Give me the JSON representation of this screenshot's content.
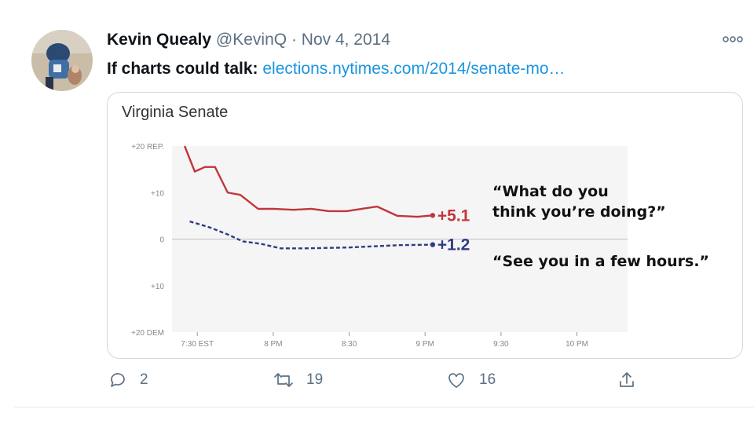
{
  "tweet": {
    "author_name": "Kevin Quealy",
    "handle": "@KevinQ",
    "separator": "·",
    "date": "Nov 4, 2014",
    "text_lead": "If charts could talk",
    "text_colon": ": ",
    "link": "elections.nytimes.com/2014/senate-mo…"
  },
  "card": {
    "quote_top": "“What do you\nthink you’re doing?”",
    "quote_bottom": "“See you in a few hours.”"
  },
  "actions": {
    "reply_count": "2",
    "retweet_count": "19",
    "like_count": "16"
  },
  "colors": {
    "rep": "#c0363c",
    "dem": "#2e3d84",
    "link": "#1b95e0",
    "muted": "#5b7083"
  },
  "chart_data": {
    "type": "line",
    "title": "Virginia Senate",
    "x_tick_labels": [
      "7:30 EST",
      "8 PM",
      "8:30",
      "9 PM",
      "9:30",
      "10 PM"
    ],
    "x_tick_minutes": [
      450,
      480,
      510,
      540,
      570,
      600
    ],
    "xlim_minutes": [
      440,
      620
    ],
    "y_tick_labels": [
      "+20 REP.",
      "+10",
      "0",
      "+10",
      "+20 DEM"
    ],
    "y_tick_values": [
      20,
      10,
      0,
      -10,
      -20
    ],
    "ylim": [
      -20,
      20
    ],
    "series": [
      {
        "id": "rep",
        "style": "solid",
        "color": "#c0363c",
        "end_label": "+5.1",
        "x": [
          445,
          449,
          453,
          457,
          462,
          467,
          474,
          480,
          488,
          495,
          502,
          509,
          515,
          521,
          529,
          537,
          543
        ],
        "y": [
          20.0,
          14.5,
          15.5,
          15.5,
          10.0,
          9.5,
          6.5,
          6.5,
          6.3,
          6.5,
          6.0,
          6.0,
          6.5,
          7.0,
          5.0,
          4.8,
          5.1
        ]
      },
      {
        "id": "dem",
        "style": "dashed",
        "color": "#2e3d84",
        "end_label": "+1.2",
        "x": [
          447,
          455,
          462,
          468,
          475,
          483,
          492,
          510,
          530,
          543
        ],
        "y": [
          3.8,
          2.5,
          1.0,
          -0.5,
          -1.0,
          -2.0,
          -2.0,
          -1.8,
          -1.3,
          -1.2
        ]
      }
    ]
  }
}
